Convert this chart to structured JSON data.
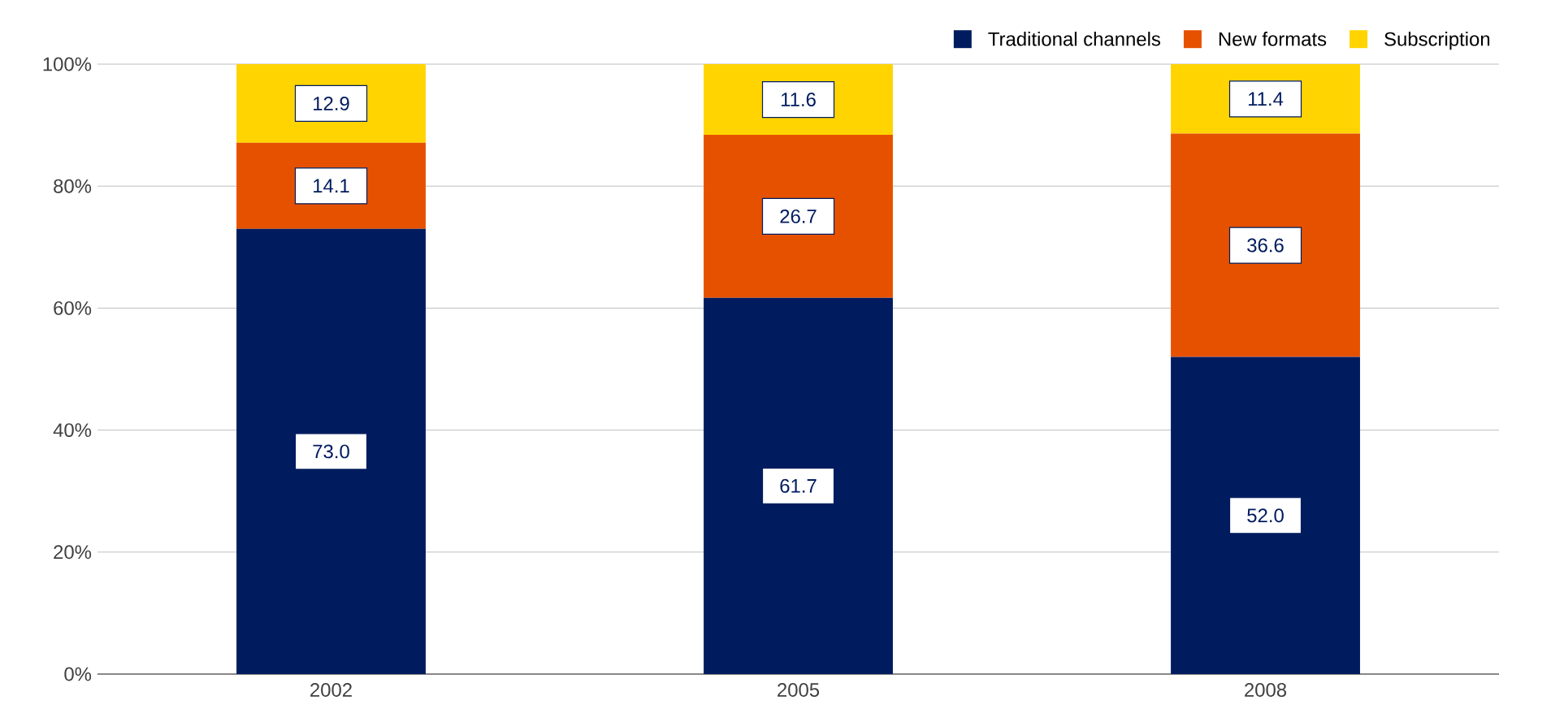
{
  "chart_data": {
    "type": "bar",
    "stacked": true,
    "categories": [
      "2002",
      "2005",
      "2008"
    ],
    "series": [
      {
        "name": "Traditional channels",
        "color": "#001c5f",
        "values": [
          73.0,
          61.7,
          52.0
        ],
        "value_labels": [
          "73.0",
          "61.7",
          "52.0"
        ]
      },
      {
        "name": "New formats",
        "color": "#e65100",
        "values": [
          14.1,
          26.7,
          36.6
        ],
        "value_labels": [
          "14.1",
          "26.7",
          "36.6"
        ]
      },
      {
        "name": "Subscription",
        "color": "#ffd400",
        "values": [
          12.9,
          11.6,
          11.4
        ],
        "value_labels": [
          "12.9",
          "11.6",
          "11.4"
        ]
      }
    ],
    "ylim": [
      0,
      100
    ],
    "yticks": [
      {
        "value": 0,
        "label": "0%"
      },
      {
        "value": 20,
        "label": "20%"
      },
      {
        "value": 40,
        "label": "40%"
      },
      {
        "value": 60,
        "label": "60%"
      },
      {
        "value": 80,
        "label": "80%"
      },
      {
        "value": 100,
        "label": "100%"
      }
    ],
    "grid": "y",
    "legend": "top right"
  }
}
